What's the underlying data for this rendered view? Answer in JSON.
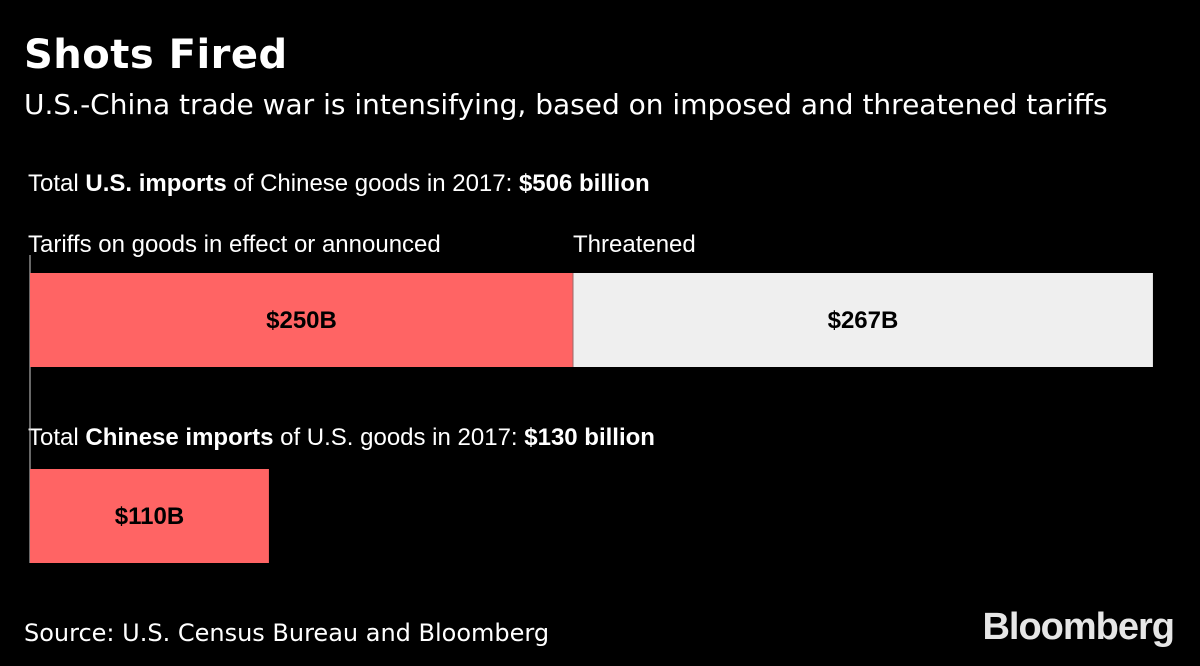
{
  "title": "Shots Fired",
  "subtitle": "U.S.-China trade war is intensifying, based on imposed and threatened tariffs",
  "us_imports": {
    "prefix": "Total ",
    "bold": "U.S. imports",
    "mid": " of Chinese goods in 2017: ",
    "total": "$506 billion"
  },
  "segment_labels": {
    "tariffs": "Tariffs on goods in effect or announced",
    "threatened": "Threatened"
  },
  "china_imports": {
    "prefix": "Total ",
    "bold": "Chinese imports",
    "mid": " of U.S. goods in 2017: ",
    "total": "$130 billion"
  },
  "source": "Source: U.S. Census Bureau and Bloomberg",
  "logo": "Bloomberg",
  "colors": {
    "tariff": "#ff6464",
    "threatened": "#efefef",
    "background": "#000000"
  },
  "chart_data": {
    "type": "bar",
    "orientation": "horizontal",
    "stacked": true,
    "unit": "billion USD",
    "bars": [
      {
        "segments": [
          {
            "value": 250,
            "label": "$250B",
            "color": "#ff6464"
          },
          {
            "value": 267,
            "label": "$267B",
            "color": "#efefef"
          }
        ]
      },
      {
        "segments": [
          {
            "value": 110,
            "label": "$110B",
            "color": "#ff6464"
          }
        ]
      }
    ]
  }
}
